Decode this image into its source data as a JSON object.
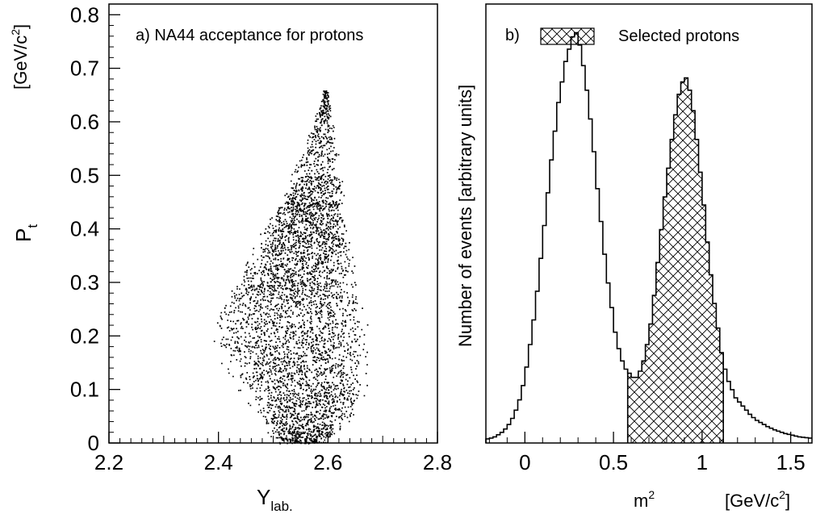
{
  "chart_data": [
    {
      "type": "scatter",
      "panel_label": "a) NA44 acceptance for protons",
      "xlabel": "Y",
      "xlabel_sub": "lab.",
      "ylabel": "P",
      "ylabel_sub": "t",
      "yunit": "[GeV/c",
      "yunit_sup": "2",
      "yunit_close": "]",
      "xlim": [
        2.2,
        2.8
      ],
      "ylim": [
        0,
        0.82
      ],
      "xticks": [
        2.2,
        2.4,
        2.6,
        2.8
      ],
      "xtick_labels": [
        "2.2",
        "2.4",
        "2.6",
        "2.8"
      ],
      "yticks": [
        0,
        0.1,
        0.2,
        0.3,
        0.4,
        0.5,
        0.6,
        0.7,
        0.8
      ],
      "ytick_labels": [
        "0",
        "0.1",
        "0.2",
        "0.3",
        "0.4",
        "0.5",
        "0.6",
        "0.7",
        "0.8"
      ],
      "grid": false,
      "acceptance_region": {
        "y_bottom": 0,
        "y_top": 0.66,
        "envelope_pt": [
          0,
          0.05,
          0.1,
          0.15,
          0.2,
          0.25,
          0.3,
          0.35,
          0.4,
          0.45,
          0.5,
          0.55,
          0.6,
          0.65
        ],
        "envelope_ymin": [
          2.5,
          2.47,
          2.43,
          2.4,
          2.38,
          2.39,
          2.42,
          2.45,
          2.48,
          2.51,
          2.53,
          2.55,
          2.57,
          2.59
        ],
        "envelope_ymax": [
          2.6,
          2.65,
          2.68,
          2.68,
          2.68,
          2.67,
          2.66,
          2.65,
          2.64,
          2.63,
          2.63,
          2.62,
          2.61,
          2.6
        ]
      }
    },
    {
      "type": "histogram",
      "panel_label": "b)",
      "legend": [
        {
          "label": "Selected protons",
          "style": "crosshatch"
        }
      ],
      "legend_position": "top",
      "xlabel": "m",
      "xlabel_sup": "2",
      "xunit": "[GeV/c",
      "xunit_sup": "2",
      "xunit_close": "]",
      "ylabel": "Number of events [arbitrary units]",
      "xlim": [
        -0.22,
        1.62
      ],
      "ylim": [
        0,
        1.07
      ],
      "xticks": [
        0,
        0.5,
        1,
        1.5
      ],
      "xtick_labels": [
        "0",
        "0.5",
        "1",
        "1.5"
      ],
      "y_tick_labels_shown": false,
      "bin_width": 0.02,
      "x_start": -0.22,
      "values": [
        0.01,
        0.012,
        0.015,
        0.02,
        0.026,
        0.034,
        0.045,
        0.06,
        0.08,
        0.105,
        0.14,
        0.185,
        0.24,
        0.3,
        0.37,
        0.45,
        0.53,
        0.61,
        0.69,
        0.76,
        0.83,
        0.88,
        0.93,
        0.96,
        0.99,
        1.0,
        0.97,
        0.92,
        0.86,
        0.79,
        0.71,
        0.62,
        0.54,
        0.46,
        0.39,
        0.33,
        0.27,
        0.23,
        0.2,
        0.18,
        0.17,
        0.16,
        0.16,
        0.175,
        0.2,
        0.24,
        0.29,
        0.36,
        0.44,
        0.52,
        0.6,
        0.67,
        0.74,
        0.8,
        0.85,
        0.88,
        0.89,
        0.86,
        0.81,
        0.74,
        0.66,
        0.58,
        0.49,
        0.41,
        0.34,
        0.28,
        0.22,
        0.18,
        0.15,
        0.13,
        0.11,
        0.1,
        0.09,
        0.08,
        0.07,
        0.062,
        0.055,
        0.05,
        0.045,
        0.04,
        0.036,
        0.032,
        0.029,
        0.026,
        0.023,
        0.021,
        0.019,
        0.017,
        0.015,
        0.014,
        0.013,
        0.012
      ],
      "selected_range": [
        0.58,
        1.12
      ]
    }
  ]
}
